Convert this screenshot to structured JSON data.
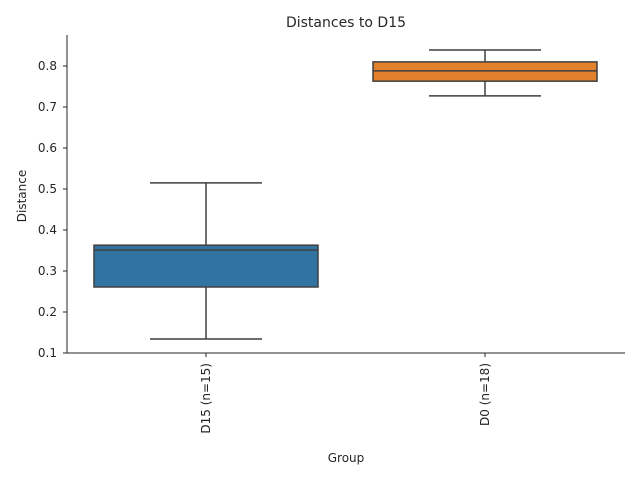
{
  "chart_data": {
    "type": "box",
    "title": "Distances to D15",
    "xlabel": "Group",
    "ylabel": "Distance",
    "ylim": [
      0.1,
      0.876
    ],
    "yticks": [
      "0.1",
      "0.2",
      "0.3",
      "0.4",
      "0.5",
      "0.6",
      "0.7",
      "0.8"
    ],
    "categories": [
      "D15 (n=15)",
      "D0 (n=18)"
    ],
    "series": [
      {
        "name": "D15 (n=15)",
        "color": "#3274a1",
        "whisker_low": 0.134,
        "q1": 0.261,
        "median": 0.351,
        "q3": 0.363,
        "whisker_high": 0.515
      },
      {
        "name": "D0 (n=18)",
        "color": "#e1812c",
        "whisker_low": 0.727,
        "q1": 0.763,
        "median": 0.788,
        "q3": 0.81,
        "whisker_high": 0.839
      }
    ],
    "grid": false
  }
}
